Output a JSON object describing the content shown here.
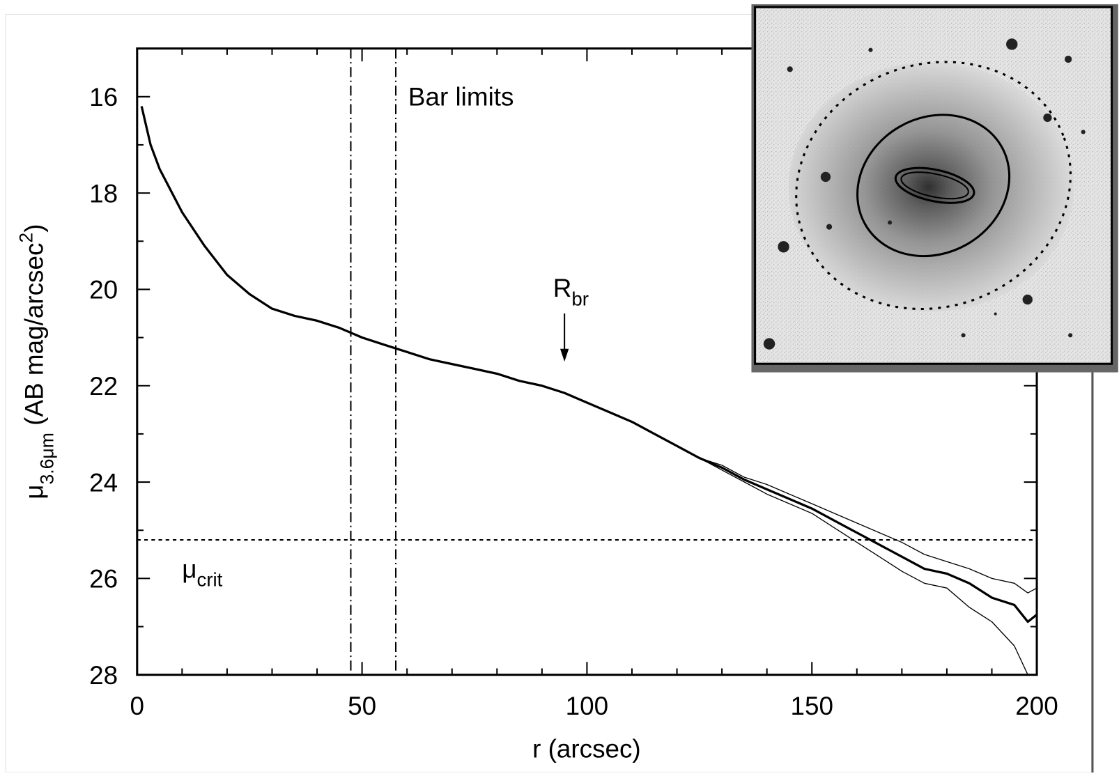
{
  "chart_data": {
    "type": "line",
    "x_label": "r (arcsec)",
    "y_label": [
      {
        "text": "μ"
      },
      {
        "text": "3.6μm",
        "sub": true
      },
      {
        "text": " (AB mag/arcsec"
      },
      {
        "text": "2",
        "sup": true
      },
      {
        "text": ")"
      }
    ],
    "xlim": [
      0,
      200
    ],
    "xticks": [
      0,
      50,
      100,
      150,
      200
    ],
    "xminor_ticks": [
      10,
      20,
      30,
      40,
      60,
      70,
      80,
      90,
      110,
      120,
      130,
      140,
      160,
      170,
      180,
      190
    ],
    "ylim": [
      15,
      28
    ],
    "y_inverted": true,
    "yticks": [
      16,
      18,
      20,
      22,
      24,
      26,
      28
    ],
    "yminor_ticks": [
      15,
      17,
      19,
      21,
      23,
      25,
      27
    ],
    "x": [
      1,
      3,
      5,
      10,
      15,
      20,
      25,
      30,
      35,
      40,
      45,
      50,
      55,
      60,
      65,
      70,
      75,
      80,
      85,
      90,
      95,
      100,
      105,
      110,
      115,
      120,
      125,
      130,
      135,
      140,
      145,
      150,
      155,
      160,
      165,
      170,
      175,
      180,
      185,
      190,
      195,
      198,
      200
    ],
    "series": [
      {
        "color": "#000000",
        "linewidth": 3.2,
        "values": [
          16.2,
          17.0,
          17.5,
          18.4,
          19.1,
          19.7,
          20.1,
          20.4,
          20.55,
          20.65,
          20.8,
          21.0,
          21.15,
          21.3,
          21.45,
          21.55,
          21.65,
          21.75,
          21.9,
          22.0,
          22.15,
          22.35,
          22.55,
          22.75,
          23.0,
          23.25,
          23.5,
          23.7,
          23.95,
          24.15,
          24.35,
          24.55,
          24.8,
          25.05,
          25.3,
          25.55,
          25.8,
          25.9,
          26.1,
          26.4,
          26.55,
          26.9,
          26.75
        ]
      },
      {
        "color": "#000000",
        "linewidth": 1.3,
        "values": [
          16.2,
          17.0,
          17.5,
          18.4,
          19.1,
          19.7,
          20.1,
          20.4,
          20.55,
          20.65,
          20.8,
          21.0,
          21.15,
          21.3,
          21.45,
          21.55,
          21.65,
          21.75,
          21.9,
          22.0,
          22.15,
          22.35,
          22.55,
          22.75,
          23.0,
          23.25,
          23.5,
          23.65,
          23.9,
          24.05,
          24.25,
          24.45,
          24.65,
          24.85,
          25.05,
          25.25,
          25.5,
          25.65,
          25.8,
          26.0,
          26.1,
          26.3,
          26.2
        ]
      },
      {
        "color": "#000000",
        "linewidth": 1.3,
        "values": [
          16.2,
          17.0,
          17.5,
          18.4,
          19.1,
          19.7,
          20.1,
          20.4,
          20.55,
          20.65,
          20.8,
          21.0,
          21.15,
          21.3,
          21.45,
          21.55,
          21.65,
          21.75,
          21.9,
          22.0,
          22.15,
          22.35,
          22.55,
          22.75,
          23.0,
          23.25,
          23.5,
          23.75,
          24.0,
          24.25,
          24.45,
          24.65,
          24.95,
          25.25,
          25.55,
          25.85,
          26.1,
          26.2,
          26.6,
          26.9,
          27.4,
          28.0,
          null
        ]
      }
    ],
    "vlines": [
      47.5,
      57.5
    ],
    "hlines": [
      25.2
    ],
    "arrow": {
      "x": 95,
      "y_from": 20.5,
      "y_to": 21.5
    },
    "annotations": [
      {
        "text": "Bar limits"
      },
      {
        "text": "R",
        "sub": "br"
      },
      {
        "text": "μ",
        "sub": "crit"
      }
    ]
  }
}
